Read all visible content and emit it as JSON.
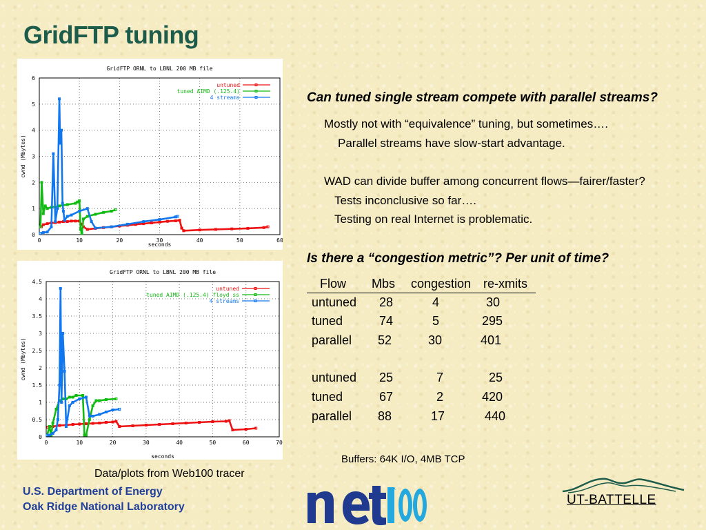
{
  "slide": {
    "title": "GridFTP tuning",
    "caption": "Data/plots from Web100 tracer",
    "question1": "Can tuned single stream compete with parallel streams?",
    "answer_lines": [
      "Mostly not with “equivalence” tuning, but sometimes….",
      "Parallel streams have slow-start advantage.",
      "WAD can divide buffer among concurrent flows—fairer/faster?",
      "Tests inconclusive so far….",
      "Testing on real Internet is problematic."
    ],
    "question2": "Is there a “congestion metric”?   Per unit of time?",
    "buffers_note": "Buffers: 64K I/O,  4MB TCP",
    "footer": [
      "U.S. Department of Energy",
      "Oak Ridge National Laboratory"
    ],
    "logo_net": "net100",
    "logo_ut": "UT-BATTELLE"
  },
  "table": {
    "headers": [
      "Flow",
      "Mbs",
      "congestion",
      "re-xmits"
    ],
    "rows": [
      [
        "untuned",
        "28",
        "4",
        "30"
      ],
      [
        "tuned",
        "74",
        "5",
        "295"
      ],
      [
        "parallel",
        "52",
        "30",
        "401"
      ],
      [
        "untuned",
        "25",
        "7",
        "25"
      ],
      [
        "tuned",
        "67",
        "2",
        "420"
      ],
      [
        "parallel",
        "88",
        "17",
        "440"
      ]
    ]
  },
  "colors": {
    "title": "#1d5b4b",
    "footer": "#1f3f9a",
    "untuned": "#ee1111",
    "tuned": "#11bb11",
    "streams": "#1177ee"
  },
  "chart_data": [
    {
      "type": "line",
      "title": "GridFTP ORNL to LBNL 200 MB file",
      "xlabel": "seconds",
      "ylabel": "cwnd (Mbytes)",
      "xlim": [
        0,
        60
      ],
      "ylim": [
        0,
        6
      ],
      "xticks": [
        0,
        10,
        20,
        30,
        40,
        50,
        60
      ],
      "yticks": [
        0,
        1,
        2,
        3,
        4,
        5,
        6
      ],
      "grid": true,
      "legend": "top-right",
      "series": [
        {
          "name": "untuned",
          "color": "#ee1111",
          "x": [
            0.5,
            1,
            2,
            3,
            4,
            5,
            6,
            7,
            8,
            9,
            10,
            11,
            12,
            14,
            16,
            18,
            20,
            22,
            24,
            26,
            28,
            30,
            32,
            34,
            35,
            35.5,
            36,
            40,
            44,
            48,
            52,
            56,
            57
          ],
          "y": [
            0.3,
            0.38,
            0.42,
            0.45,
            0.46,
            0.48,
            0.5,
            0.5,
            0.52,
            0.52,
            0.52,
            0.3,
            0.2,
            0.24,
            0.27,
            0.3,
            0.33,
            0.36,
            0.39,
            0.42,
            0.45,
            0.48,
            0.51,
            0.53,
            0.55,
            0.25,
            0.15,
            0.18,
            0.2,
            0.22,
            0.24,
            0.27,
            0.3
          ]
        },
        {
          "name": "tuned AIMD (.125.4)",
          "color": "#11bb11",
          "x": [
            0.3,
            0.6,
            1,
            1.5,
            2,
            3,
            5,
            7,
            9,
            9.5,
            10,
            10.3,
            10.6,
            11,
            12,
            14,
            16,
            18,
            19
          ],
          "y": [
            0.3,
            2.0,
            0.8,
            1.1,
            1.0,
            1.05,
            1.1,
            1.15,
            1.2,
            1.25,
            1.3,
            0.2,
            0.05,
            0.6,
            0.7,
            0.78,
            0.85,
            0.9,
            0.95
          ]
        },
        {
          "name": "4 streams",
          "color": "#1177ee",
          "x": [
            0.3,
            1,
            2,
            3,
            3.5,
            4,
            4.5,
            5,
            5.2,
            5.5,
            5.8,
            6,
            6.3,
            7,
            8,
            10,
            12,
            13,
            14,
            18,
            22,
            26,
            30,
            34,
            34.5
          ],
          "y": [
            0.05,
            0.08,
            0.1,
            0.3,
            3.1,
            0.5,
            1.0,
            5.2,
            3.5,
            4.0,
            1.2,
            0.9,
            0.55,
            0.7,
            0.75,
            0.9,
            1.0,
            0.5,
            0.25,
            0.3,
            0.4,
            0.5,
            0.58,
            0.68,
            0.7
          ]
        }
      ]
    },
    {
      "type": "line",
      "title": "GridFTP ORNL to LBNL 200 MB file",
      "xlabel": "seconds",
      "ylabel": "cwnd (Mbytes)",
      "xlim": [
        0,
        70
      ],
      "ylim": [
        0,
        4.5
      ],
      "xticks": [
        0,
        10,
        20,
        30,
        40,
        50,
        60,
        70
      ],
      "yticks": [
        0,
        0.5,
        1,
        1.5,
        2,
        2.5,
        3,
        3.5,
        4,
        4.5
      ],
      "grid": true,
      "legend": "top-right",
      "series": [
        {
          "name": "untuned",
          "color": "#ee1111",
          "x": [
            0.5,
            1,
            2,
            4,
            6,
            8,
            10,
            12,
            14,
            16,
            18,
            20,
            21,
            22,
            26,
            30,
            34,
            38,
            42,
            46,
            50,
            54,
            55,
            56,
            60,
            63
          ],
          "y": [
            0.28,
            0.3,
            0.3,
            0.33,
            0.34,
            0.36,
            0.37,
            0.38,
            0.39,
            0.4,
            0.42,
            0.43,
            0.45,
            0.3,
            0.32,
            0.34,
            0.36,
            0.38,
            0.4,
            0.42,
            0.44,
            0.45,
            0.47,
            0.2,
            0.22,
            0.25
          ]
        },
        {
          "name": "tuned AIMD (.125.4) floyd ss",
          "color": "#11bb11",
          "x": [
            0.3,
            1,
            1.5,
            2,
            3,
            4,
            5,
            6,
            7,
            8,
            9,
            11,
            11.5,
            12,
            13,
            14,
            15,
            16,
            18,
            21
          ],
          "y": [
            0.05,
            0.3,
            0.05,
            0.4,
            0.8,
            1.05,
            1.1,
            1.1,
            1.15,
            1.15,
            1.2,
            1.2,
            0.05,
            0.05,
            0.5,
            0.9,
            1.05,
            1.05,
            1.08,
            1.1
          ]
        },
        {
          "name": "4 streams",
          "color": "#1177ee",
          "x": [
            0.3,
            1,
            2,
            3,
            3.5,
            4,
            4.3,
            4.6,
            5,
            5.5,
            6,
            7,
            8,
            10,
            12,
            13,
            14,
            16,
            18,
            20,
            22
          ],
          "y": [
            0.05,
            0.05,
            0.1,
            0.2,
            0.5,
            1.5,
            4.3,
            1.0,
            3.0,
            1.9,
            0.3,
            0.9,
            1.0,
            1.1,
            1.15,
            0.6,
            0.6,
            0.65,
            0.72,
            0.78,
            0.8
          ]
        }
      ]
    }
  ]
}
